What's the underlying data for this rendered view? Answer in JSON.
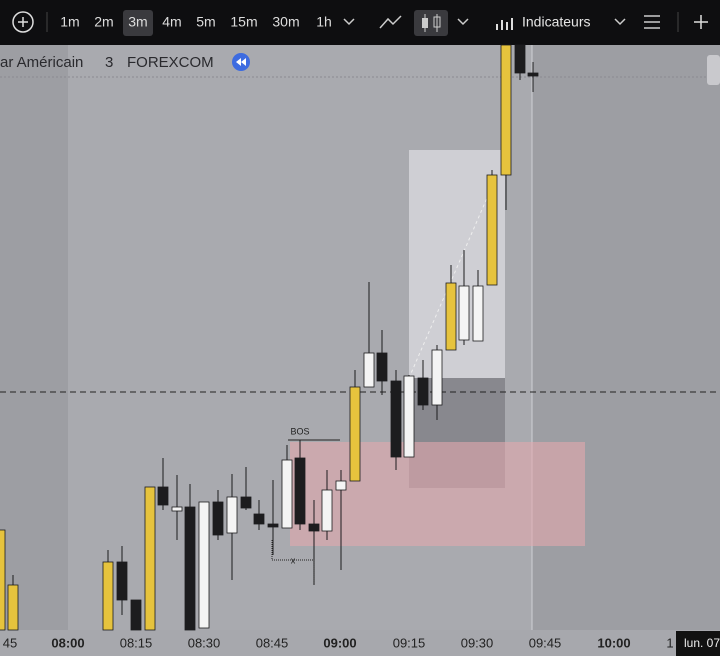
{
  "toolbar": {
    "intervals": [
      "1m",
      "2m",
      "3m",
      "4m",
      "5m",
      "15m",
      "30m",
      "1h"
    ],
    "active_interval": 2,
    "indicators": "Indicateurs"
  },
  "symbol": {
    "name": "ar Américain",
    "interval": "3",
    "exchange": "FOREXCOM"
  },
  "annotations": {
    "bos": "BOS",
    "x": "x"
  },
  "time_axis": {
    "labels": [
      {
        "text": "45",
        "bold": false
      },
      {
        "text": "08:00",
        "bold": true
      },
      {
        "text": "08:15",
        "bold": false
      },
      {
        "text": "08:30",
        "bold": false
      },
      {
        "text": "08:45",
        "bold": false
      },
      {
        "text": "09:00",
        "bold": true
      },
      {
        "text": "09:15",
        "bold": false
      },
      {
        "text": "09:30",
        "bold": false
      },
      {
        "text": "09:45",
        "bold": false
      },
      {
        "text": "10:00",
        "bold": true
      },
      {
        "text": "1",
        "bold": false
      }
    ],
    "cursor_date": "lun. 07"
  }
}
